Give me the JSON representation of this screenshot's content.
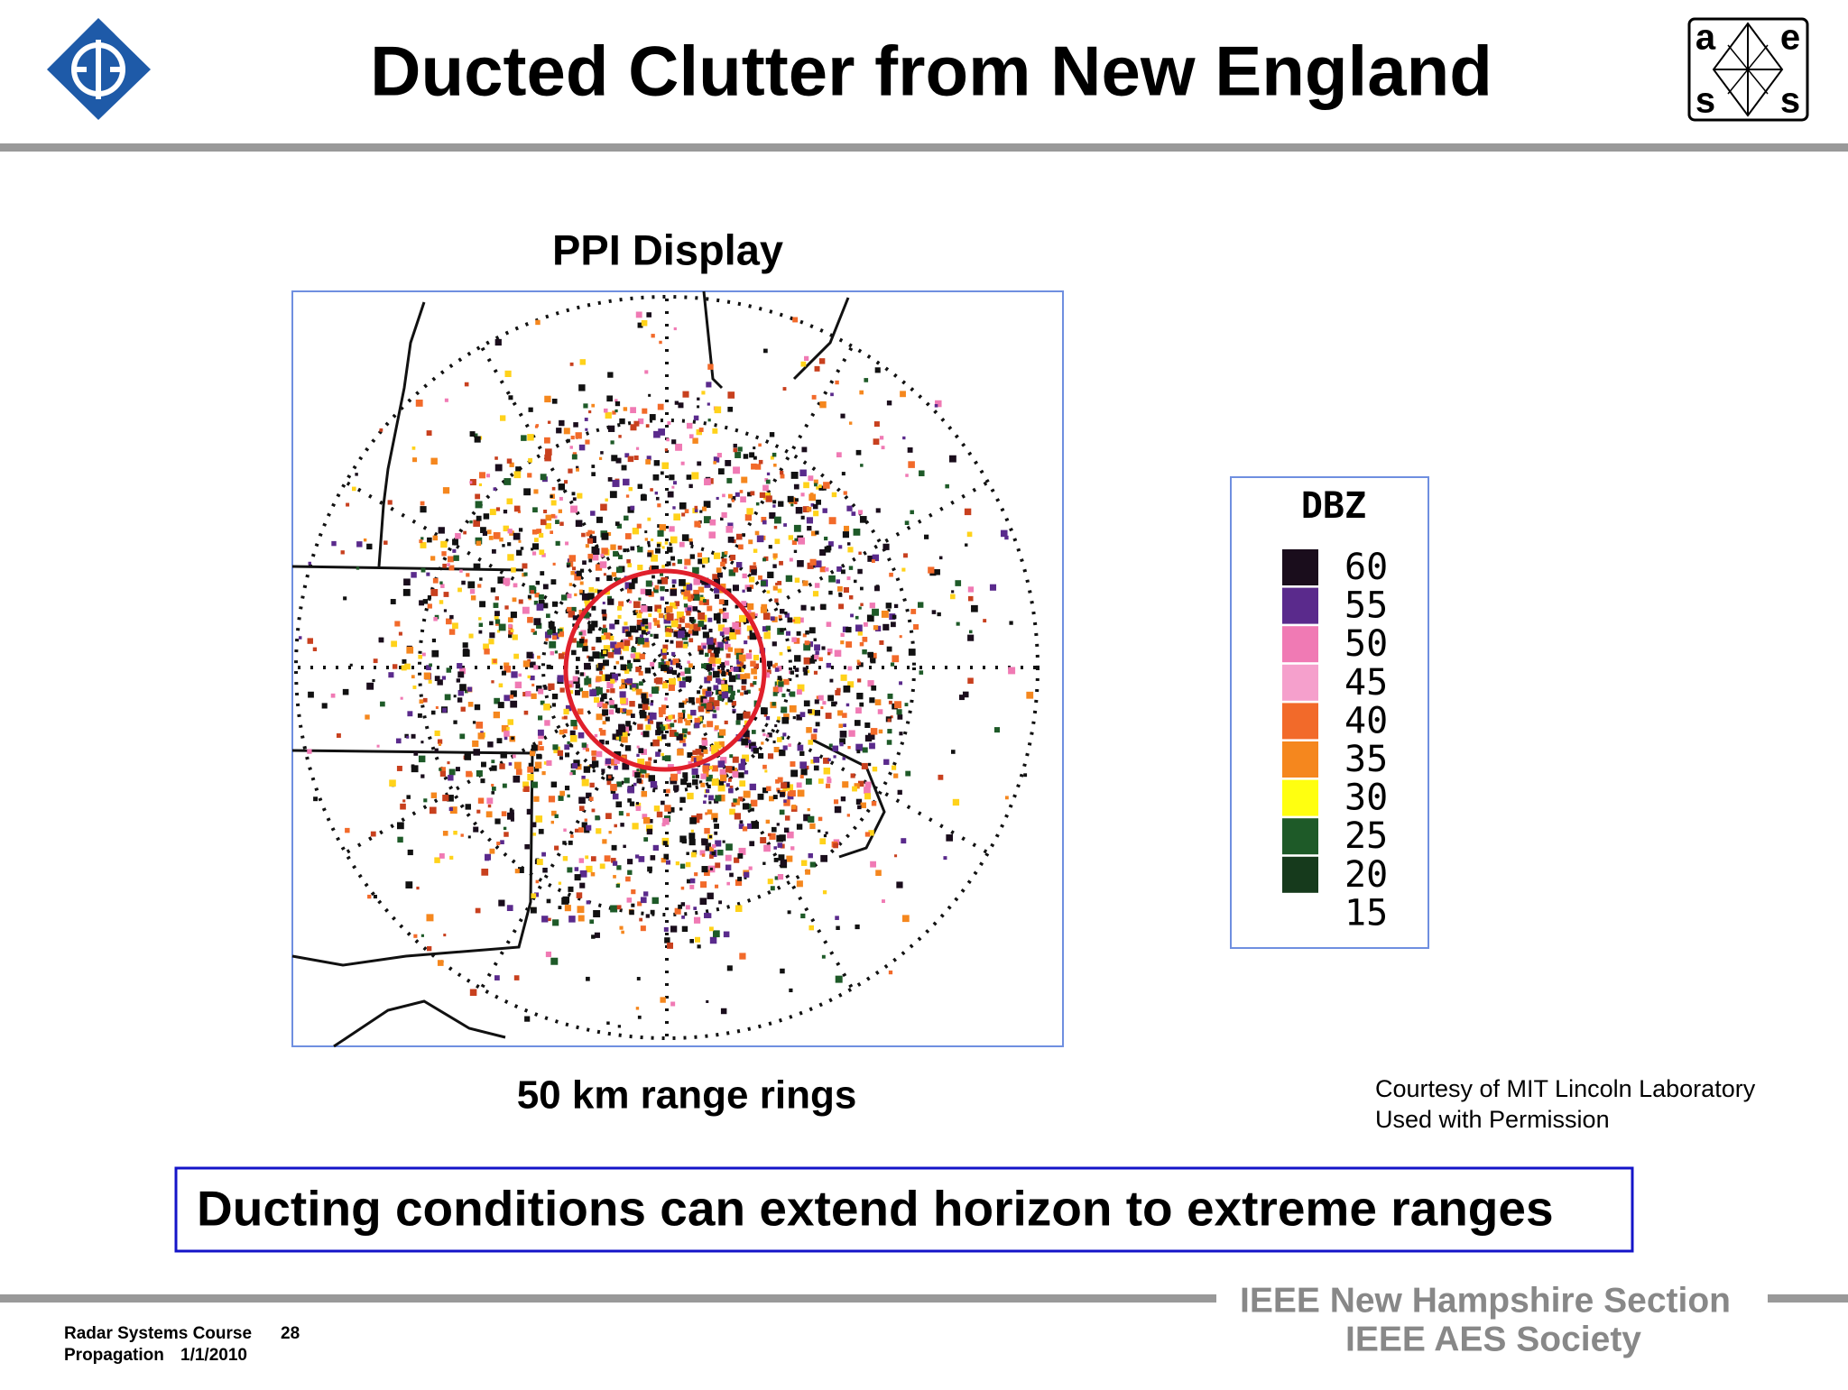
{
  "header": {
    "title": "Ducted Clutter from New England",
    "aes_logo": [
      "a",
      "e",
      "s",
      "s"
    ]
  },
  "figure": {
    "title": "PPI Display",
    "caption": "50 km range rings",
    "legend": {
      "title": "DBZ",
      "entries": [
        {
          "label": "60",
          "color": "#1a0d1c"
        },
        {
          "label": "55",
          "color": "#5a2a8c"
        },
        {
          "label": "50",
          "color": "#f07ab4"
        },
        {
          "label": "45",
          "color": "#f5a0cc"
        },
        {
          "label": "40",
          "color": "#f26a2a"
        },
        {
          "label": "35",
          "color": "#f5871e"
        },
        {
          "label": "30",
          "color": "#ffff10"
        },
        {
          "label": "25",
          "color": "#1e5a28"
        },
        {
          "label": "20",
          "color": "#163a1c"
        },
        {
          "label": "15",
          "color": "#ffffff"
        }
      ]
    }
  },
  "credit": [
    "Courtesy of MIT Lincoln Laboratory",
    "Used with Permission"
  ],
  "banner": "Ducting conditions can extend horizon to extreme ranges",
  "footer": {
    "course": "Radar Systems Course",
    "page": "28",
    "topic": "Propagation",
    "date": "1/1/2010",
    "org": [
      "IEEE New Hampshire Section",
      "IEEE AES Society"
    ]
  }
}
